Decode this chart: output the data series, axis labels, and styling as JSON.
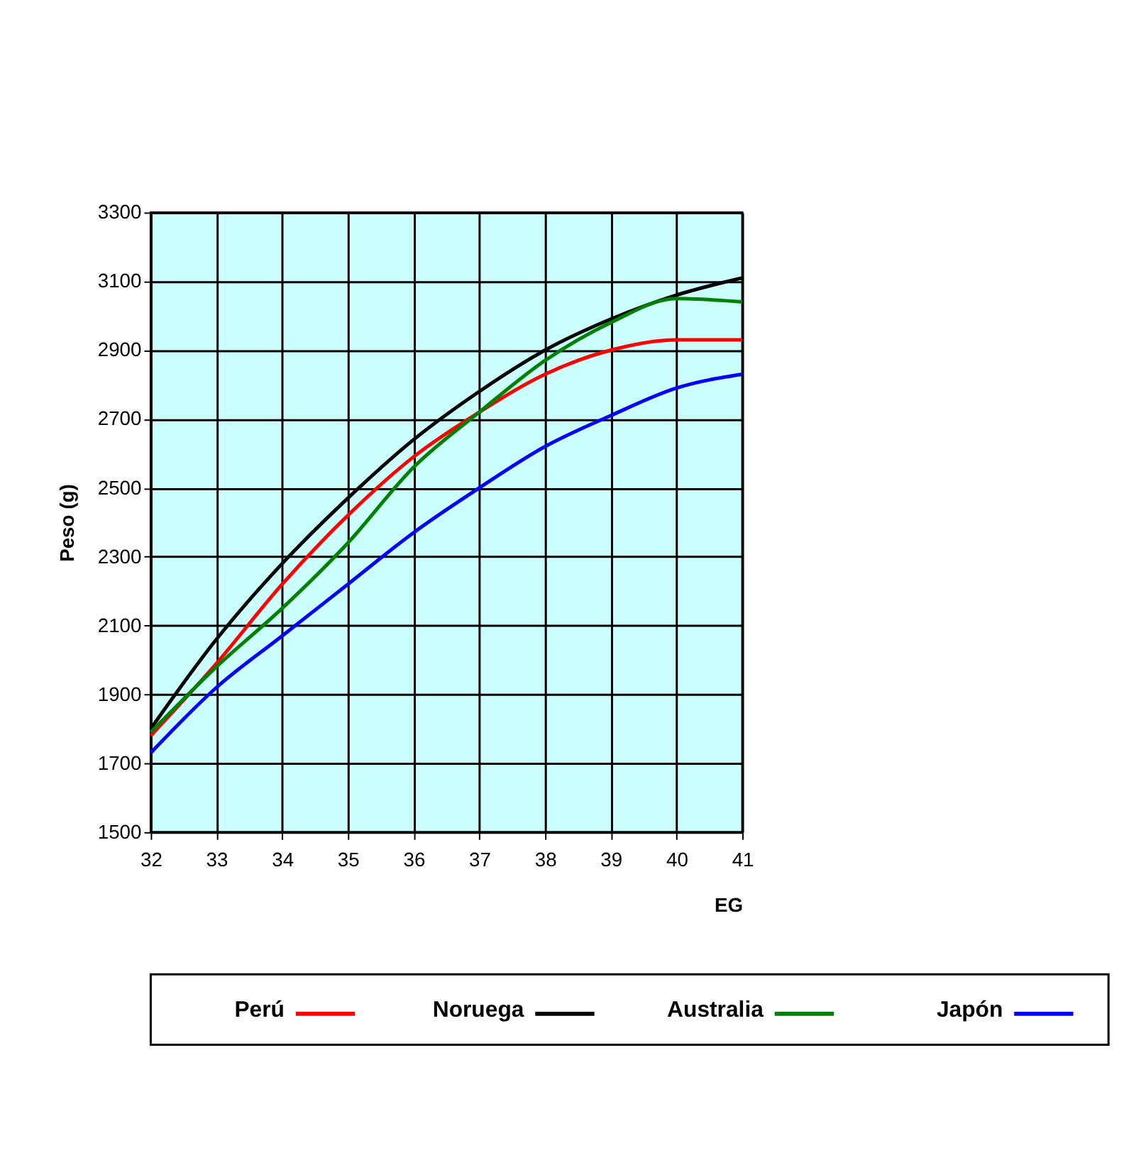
{
  "chart_data": {
    "type": "line",
    "xlabel": "EG",
    "ylabel": "Peso (g)",
    "x": [
      32,
      33,
      34,
      35,
      36,
      37,
      38,
      39,
      40,
      41
    ],
    "series": [
      {
        "name": "Perú",
        "color": "#ff0000",
        "values": [
          1780,
          1990,
          2220,
          2420,
          2590,
          2720,
          2830,
          2900,
          2930,
          2930
        ]
      },
      {
        "name": "Noruega",
        "color": "#000000",
        "values": [
          1800,
          2060,
          2280,
          2470,
          2640,
          2780,
          2900,
          2990,
          3060,
          3110
        ]
      },
      {
        "name": "Australia",
        "color": "#008000",
        "values": [
          1790,
          1980,
          2150,
          2340,
          2560,
          2720,
          2870,
          2980,
          3050,
          3040
        ]
      },
      {
        "name": "Japón",
        "color": "#0000ff",
        "values": [
          1730,
          1920,
          2070,
          2220,
          2370,
          2500,
          2620,
          2710,
          2790,
          2830
        ]
      }
    ],
    "xlim": [
      32,
      41
    ],
    "xticks": [
      32,
      33,
      34,
      35,
      36,
      37,
      38,
      39,
      40,
      41
    ],
    "ylim": [
      1500,
      3300
    ],
    "yticks": [
      1500,
      1700,
      1900,
      2100,
      2300,
      2500,
      2700,
      2900,
      3100,
      3300
    ],
    "grid": true,
    "legend": "bottom",
    "marker": "none",
    "line_style": "solid"
  }
}
